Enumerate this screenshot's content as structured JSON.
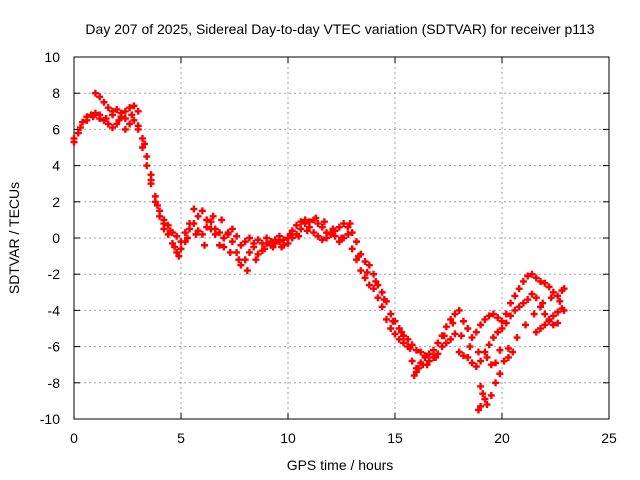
{
  "chart_data": {
    "type": "scatter",
    "title": "Day 207 of 2025, Sidereal Day-to-day VTEC variation (SDTVAR) for receiver p113",
    "xlabel": "GPS time / hours",
    "ylabel": "SDTVAR / TECUs",
    "xlim": [
      0,
      25
    ],
    "ylim": [
      -10,
      10
    ],
    "xticks": [
      "0",
      "5",
      "10",
      "15",
      "20",
      "25"
    ],
    "yticks": [
      "-10",
      "-8",
      "-6",
      "-4",
      "-2",
      "0",
      "2",
      "4",
      "6",
      "8",
      "10"
    ],
    "grid": true,
    "marker": "plus",
    "series": [
      {
        "color": "#ff0000",
        "points": [
          [
            0.0,
            5.3
          ],
          [
            0.2,
            5.8
          ],
          [
            0.4,
            6.4
          ],
          [
            0.6,
            6.7
          ],
          [
            0.8,
            6.8
          ],
          [
            1.0,
            6.9
          ],
          [
            1.2,
            6.6
          ],
          [
            1.4,
            6.5
          ],
          [
            1.6,
            6.3
          ],
          [
            1.8,
            6.1
          ],
          [
            2.0,
            6.3
          ],
          [
            2.2,
            6.7
          ],
          [
            2.4,
            6.6
          ],
          [
            2.6,
            6.3
          ],
          [
            2.8,
            6.5
          ],
          [
            3.0,
            6.2
          ],
          [
            3.2,
            5.5
          ],
          [
            3.4,
            4.5
          ],
          [
            3.6,
            3.5
          ],
          [
            3.8,
            2.3
          ],
          [
            4.0,
            1.5
          ],
          [
            4.2,
            0.8
          ],
          [
            4.4,
            0.7
          ],
          [
            4.6,
            0.3
          ],
          [
            4.8,
            0.1
          ],
          [
            5.0,
            -0.2
          ],
          [
            5.2,
            0.3
          ],
          [
            5.4,
            0.5
          ],
          [
            5.6,
            0.8
          ],
          [
            5.8,
            0.4
          ],
          [
            6.0,
            0.2
          ],
          [
            6.2,
            0.6
          ],
          [
            6.4,
            0.9
          ],
          [
            6.6,
            0.5
          ],
          [
            6.8,
            0.3
          ],
          [
            7.0,
            0.0
          ],
          [
            7.2,
            0.2
          ],
          [
            7.4,
            0.5
          ],
          [
            7.6,
            0.1
          ],
          [
            7.8,
            -0.4
          ],
          [
            8.0,
            -0.2
          ],
          [
            8.2,
            0.0
          ],
          [
            8.4,
            -0.3
          ],
          [
            8.6,
            -0.1
          ],
          [
            8.8,
            -0.3
          ],
          [
            9.0,
            0.0
          ],
          [
            9.2,
            -0.2
          ],
          [
            9.4,
            -0.3
          ],
          [
            9.6,
            -0.2
          ],
          [
            9.8,
            -0.4
          ],
          [
            10.0,
            -0.3
          ],
          [
            10.2,
            0.0
          ],
          [
            10.4,
            0.2
          ],
          [
            10.6,
            0.5
          ],
          [
            10.8,
            0.8
          ],
          [
            11.0,
            0.9
          ],
          [
            11.2,
            1.0
          ],
          [
            11.4,
            0.8
          ],
          [
            11.6,
            0.6
          ],
          [
            11.8,
            0.3
          ],
          [
            12.0,
            0.2
          ],
          [
            12.2,
            0.4
          ],
          [
            12.4,
            0.6
          ],
          [
            12.6,
            0.8
          ],
          [
            12.8,
            0.6
          ],
          [
            13.0,
            0.3
          ],
          [
            13.2,
            -0.2
          ],
          [
            13.4,
            -0.9
          ],
          [
            13.6,
            -1.3
          ],
          [
            13.8,
            -1.5
          ],
          [
            14.0,
            -2.0
          ],
          [
            14.2,
            -2.6
          ],
          [
            14.4,
            -3.0
          ],
          [
            14.6,
            -3.5
          ],
          [
            14.8,
            -4.2
          ],
          [
            15.0,
            -4.6
          ],
          [
            15.2,
            -5.0
          ],
          [
            15.4,
            -5.4
          ],
          [
            15.6,
            -5.6
          ],
          [
            15.8,
            -5.9
          ],
          [
            16.0,
            -6.2
          ],
          [
            16.2,
            -6.3
          ],
          [
            16.4,
            -6.5
          ],
          [
            16.6,
            -6.4
          ],
          [
            16.8,
            -6.2
          ],
          [
            17.0,
            -5.8
          ],
          [
            17.2,
            -5.4
          ],
          [
            17.4,
            -4.9
          ],
          [
            17.6,
            -4.5
          ],
          [
            17.8,
            -4.2
          ],
          [
            18.0,
            -4.0
          ],
          [
            18.2,
            -4.6
          ],
          [
            18.4,
            -5.0
          ],
          [
            18.6,
            -5.5
          ],
          [
            18.8,
            -5.2
          ],
          [
            19.0,
            -4.8
          ],
          [
            19.2,
            -4.5
          ],
          [
            19.4,
            -4.3
          ],
          [
            19.6,
            -4.2
          ],
          [
            19.8,
            -4.4
          ],
          [
            20.0,
            -4.6
          ],
          [
            20.2,
            -4.2
          ],
          [
            20.4,
            -3.6
          ],
          [
            20.6,
            -3.2
          ],
          [
            20.8,
            -2.8
          ],
          [
            21.0,
            -2.4
          ],
          [
            21.2,
            -2.1
          ],
          [
            21.4,
            -2.0
          ],
          [
            21.6,
            -2.2
          ],
          [
            21.8,
            -2.4
          ],
          [
            22.0,
            -2.5
          ],
          [
            22.2,
            -2.7
          ],
          [
            22.4,
            -3.0
          ],
          [
            22.6,
            -3.2
          ],
          [
            22.8,
            -2.9
          ],
          [
            22.9,
            -2.8
          ],
          [
            1.0,
            8.0
          ],
          [
            1.2,
            7.8
          ],
          [
            1.4,
            7.5
          ],
          [
            1.6,
            7.2
          ],
          [
            1.8,
            7.0
          ],
          [
            2.0,
            7.1
          ],
          [
            2.2,
            6.9
          ],
          [
            2.4,
            7.0
          ],
          [
            2.6,
            7.2
          ],
          [
            2.8,
            7.3
          ],
          [
            3.0,
            6.0
          ],
          [
            3.2,
            5.0
          ],
          [
            3.4,
            4.0
          ],
          [
            3.6,
            3.0
          ],
          [
            3.8,
            2.0
          ],
          [
            4.0,
            1.2
          ],
          [
            4.2,
            0.5
          ],
          [
            4.4,
            0.2
          ],
          [
            4.6,
            -0.3
          ],
          [
            4.8,
            -0.8
          ],
          [
            5.0,
            -0.6
          ],
          [
            5.2,
            -0.2
          ],
          [
            5.4,
            0.8
          ],
          [
            5.6,
            1.6
          ],
          [
            5.8,
            1.2
          ],
          [
            6.0,
            1.5
          ],
          [
            6.2,
            1.0
          ],
          [
            6.4,
            0.5
          ],
          [
            6.6,
            0.2
          ],
          [
            6.8,
            -0.4
          ],
          [
            7.0,
            -0.5
          ],
          [
            7.2,
            0.3
          ],
          [
            7.4,
            -0.2
          ],
          [
            7.6,
            -0.8
          ],
          [
            7.8,
            -1.5
          ],
          [
            8.0,
            -1.2
          ],
          [
            8.2,
            -0.8
          ],
          [
            8.4,
            -0.5
          ],
          [
            8.6,
            -0.9
          ],
          [
            8.8,
            -0.7
          ],
          [
            9.0,
            -0.3
          ],
          [
            9.2,
            -0.4
          ],
          [
            9.4,
            -0.1
          ],
          [
            9.6,
            0.1
          ],
          [
            9.8,
            -0.1
          ],
          [
            10.0,
            0.0
          ],
          [
            10.2,
            0.4
          ],
          [
            10.4,
            0.7
          ],
          [
            10.6,
            0.9
          ],
          [
            10.8,
            1.0
          ],
          [
            11.0,
            0.6
          ],
          [
            11.2,
            0.3
          ],
          [
            11.4,
            0.1
          ],
          [
            11.6,
            -0.1
          ],
          [
            11.8,
            0.0
          ],
          [
            12.0,
            0.3
          ],
          [
            12.2,
            0.1
          ],
          [
            12.4,
            -0.2
          ],
          [
            12.6,
            0.0
          ],
          [
            12.8,
            0.2
          ],
          [
            13.0,
            -0.6
          ],
          [
            13.2,
            -1.2
          ],
          [
            13.4,
            -1.8
          ],
          [
            13.6,
            -2.2
          ],
          [
            13.8,
            -2.6
          ],
          [
            14.0,
            -2.8
          ],
          [
            14.2,
            -3.3
          ],
          [
            14.4,
            -3.8
          ],
          [
            14.6,
            -4.5
          ],
          [
            14.8,
            -5.0
          ],
          [
            15.0,
            -5.3
          ],
          [
            15.2,
            -5.6
          ],
          [
            15.4,
            -5.8
          ],
          [
            15.6,
            -6.0
          ],
          [
            15.8,
            -6.8
          ],
          [
            16.0,
            -7.4
          ],
          [
            16.2,
            -6.9
          ],
          [
            16.4,
            -6.6
          ],
          [
            16.6,
            -6.8
          ],
          [
            16.8,
            -6.6
          ],
          [
            17.0,
            -6.4
          ],
          [
            17.2,
            -6.0
          ],
          [
            17.4,
            -5.8
          ],
          [
            17.6,
            -5.6
          ],
          [
            17.8,
            -5.3
          ],
          [
            18.0,
            -6.3
          ],
          [
            18.2,
            -6.5
          ],
          [
            18.4,
            -6.6
          ],
          [
            18.6,
            -6.9
          ],
          [
            18.8,
            -7.1
          ],
          [
            19.0,
            -6.8
          ],
          [
            19.2,
            -6.3
          ],
          [
            19.4,
            -5.9
          ],
          [
            19.6,
            -5.5
          ],
          [
            19.8,
            -5.2
          ],
          [
            20.0,
            -5.0
          ],
          [
            20.2,
            -4.7
          ],
          [
            20.4,
            -4.3
          ],
          [
            20.6,
            -4.0
          ],
          [
            20.8,
            -3.8
          ],
          [
            21.0,
            -3.6
          ],
          [
            21.2,
            -3.4
          ],
          [
            21.4,
            -3.1
          ],
          [
            21.6,
            -3.3
          ],
          [
            21.8,
            -3.8
          ],
          [
            22.0,
            -4.2
          ],
          [
            22.2,
            -4.5
          ],
          [
            22.4,
            -4.3
          ],
          [
            22.6,
            -4.1
          ],
          [
            22.8,
            -3.9
          ],
          [
            0.0,
            5.5
          ],
          [
            0.3,
            6.1
          ],
          [
            0.6,
            6.5
          ],
          [
            0.9,
            6.7
          ],
          [
            1.2,
            6.8
          ],
          [
            1.5,
            6.6
          ],
          [
            1.8,
            6.8
          ],
          [
            2.1,
            6.5
          ],
          [
            2.4,
            6.0
          ],
          [
            2.7,
            6.8
          ],
          [
            3.0,
            7.0
          ],
          [
            3.3,
            5.2
          ],
          [
            3.6,
            3.2
          ],
          [
            3.9,
            1.8
          ],
          [
            4.2,
            1.0
          ],
          [
            4.5,
            0.4
          ],
          [
            4.7,
            -0.5
          ],
          [
            4.9,
            -1.0
          ],
          [
            5.3,
            0.0
          ],
          [
            5.7,
            0.2
          ],
          [
            6.1,
            -0.4
          ],
          [
            6.5,
            1.2
          ],
          [
            6.9,
            1.0
          ],
          [
            7.3,
            -0.8
          ],
          [
            7.7,
            -1.2
          ],
          [
            8.1,
            -1.8
          ],
          [
            8.5,
            -1.2
          ],
          [
            8.9,
            -0.6
          ],
          [
            9.3,
            -0.5
          ],
          [
            9.7,
            -0.5
          ],
          [
            10.1,
            0.2
          ],
          [
            10.5,
            0.1
          ],
          [
            10.9,
            0.4
          ],
          [
            11.3,
            1.1
          ],
          [
            11.7,
            0.9
          ],
          [
            12.1,
            0.5
          ],
          [
            12.5,
            0.0
          ],
          [
            12.9,
            0.8
          ],
          [
            13.3,
            -1.0
          ],
          [
            13.7,
            -1.9
          ],
          [
            14.1,
            -2.4
          ],
          [
            14.5,
            -3.4
          ],
          [
            14.9,
            -4.6
          ],
          [
            15.3,
            -5.2
          ],
          [
            15.7,
            -6.1
          ],
          [
            16.1,
            -7.2
          ],
          [
            16.5,
            -7.0
          ],
          [
            16.9,
            -6.6
          ],
          [
            17.3,
            -5.4
          ],
          [
            17.7,
            -4.7
          ],
          [
            18.1,
            -5.4
          ],
          [
            18.5,
            -6.0
          ],
          [
            18.9,
            -6.3
          ],
          [
            19.3,
            -6.6
          ],
          [
            19.5,
            -7.0
          ],
          [
            19.7,
            -6.9
          ],
          [
            19.9,
            -6.2
          ],
          [
            20.1,
            -6.8
          ],
          [
            20.3,
            -6.1
          ],
          [
            20.7,
            -5.5
          ],
          [
            21.1,
            -4.8
          ],
          [
            21.5,
            -4.2
          ],
          [
            21.9,
            -3.6
          ],
          [
            22.3,
            -3.3
          ],
          [
            22.7,
            -3.5
          ],
          [
            22.9,
            -4.0
          ],
          [
            19.0,
            -8.2
          ],
          [
            19.1,
            -8.6
          ],
          [
            19.2,
            -8.9
          ],
          [
            19.3,
            -9.2
          ],
          [
            19.5,
            -8.7
          ],
          [
            19.7,
            -8.0
          ],
          [
            19.9,
            -7.5
          ],
          [
            18.9,
            -9.5
          ],
          [
            19.0,
            -9.3
          ],
          [
            21.8,
            -5.0
          ],
          [
            22.0,
            -4.8
          ],
          [
            22.2,
            -4.6
          ],
          [
            22.4,
            -4.8
          ],
          [
            21.6,
            -5.2
          ],
          [
            22.6,
            -4.7
          ],
          [
            15.9,
            -7.6
          ],
          [
            16.0,
            -7.2
          ],
          [
            16.3,
            -7.0
          ],
          [
            20.3,
            -6.6
          ],
          [
            20.5,
            -6.3
          ]
        ]
      }
    ]
  }
}
